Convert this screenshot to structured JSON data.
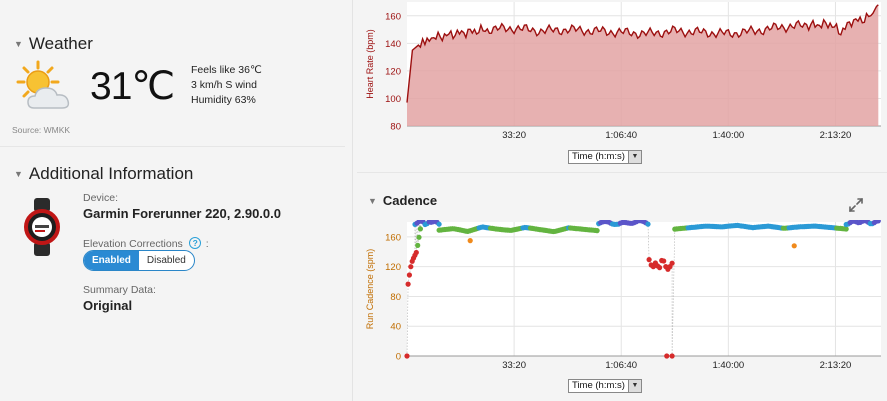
{
  "weather": {
    "section_title": "Weather",
    "icon": "partly-cloudy-icon",
    "temperature": "31℃",
    "feels_like": "Feels like 36℃",
    "wind": "3 km/h S wind",
    "humidity": "Humidity 63%",
    "source": "Source: WMKK"
  },
  "additional": {
    "section_title": "Additional Information",
    "device_label": "Device:",
    "device_value": "Garmin Forerunner 220, 2.90.0.0",
    "elevation_label": "Elevation Corrections",
    "help_icon": "?",
    "elevation_colon": ":",
    "enabled_label": "Enabled",
    "disabled_label": "Disabled",
    "summary_label": "Summary Data:",
    "summary_value": "Original"
  },
  "time_selector": {
    "label": "Time (h:m:s)"
  },
  "cadence": {
    "section_title": "Cadence"
  },
  "colors": {
    "hr_line": "#9c0f0f",
    "hr_fill": "#e3a3a3",
    "accent_blue": "#2b8ad3"
  },
  "chart_data": [
    {
      "type": "area",
      "ylabel": "Heart Rate (bpm)",
      "xlabel": "Time (h:m:s)",
      "ylim": [
        80,
        170
      ],
      "yticks": [
        80,
        100,
        120,
        140,
        160
      ],
      "xlim": [
        0,
        8850
      ],
      "xticks": [
        2000,
        4000,
        6000,
        8000
      ],
      "xtick_labels": [
        "33:20",
        "1:06:40",
        "1:40:00",
        "2:13:20"
      ],
      "grid": true,
      "x": [
        0,
        100,
        250,
        500,
        900,
        1500,
        2000,
        2500,
        3000,
        3500,
        4000,
        4500,
        5000,
        5500,
        6000,
        6500,
        7000,
        7500,
        7900,
        8100,
        8300,
        8500,
        8700,
        8800
      ],
      "values": [
        97,
        135,
        140,
        144,
        147,
        150,
        151,
        149,
        150,
        149,
        148,
        147,
        149,
        148,
        147,
        149,
        152,
        153,
        154,
        148,
        156,
        157,
        161,
        168
      ]
    },
    {
      "type": "scatter",
      "ylabel": "Run Cadence (spm)",
      "xlabel": "Time (h:m:s)",
      "ylim": [
        0,
        180
      ],
      "yticks": [
        0,
        40,
        80,
        120,
        160
      ],
      "xlim": [
        0,
        8850
      ],
      "xticks": [
        2000,
        4000,
        6000,
        8000
      ],
      "xtick_labels": [
        "33:20",
        "1:06:40",
        "1:40:00",
        "2:13:20"
      ],
      "grid": true,
      "segments": [
        {
          "x_start": 0,
          "x_end": 5,
          "values": [
            0
          ]
        },
        {
          "x_start": 20,
          "x_end": 250,
          "values": [
            98,
            110,
            120,
            126,
            130,
            135,
            140,
            150,
            160,
            170
          ]
        },
        {
          "x_start": 150,
          "x_end": 600,
          "values": [
            178,
            181,
            180,
            176,
            182,
            179,
            180,
            178
          ]
        },
        {
          "x_start": 600,
          "x_end": 3550,
          "values": [
            170,
            172,
            168,
            174,
            171,
            169,
            173,
            170,
            167,
            172,
            170,
            168
          ]
        },
        {
          "x_start": 3580,
          "x_end": 4500,
          "values": [
            178,
            180,
            177,
            179,
            181,
            178
          ]
        },
        {
          "x_start": 4520,
          "x_end": 4950,
          "values": [
            128,
            120,
            124,
            118,
            130,
            122,
            115,
            125
          ]
        },
        {
          "x_start": 4950,
          "x_end": 4980,
          "values": [
            0
          ]
        },
        {
          "x_start": 5000,
          "x_end": 8200,
          "values": [
            172,
            174,
            176,
            175,
            177,
            174,
            176,
            173,
            175,
            176,
            174,
            172
          ]
        },
        {
          "x_start": 8200,
          "x_end": 8800,
          "values": [
            178,
            180,
            181,
            179,
            180
          ]
        }
      ],
      "outliers": [
        {
          "x": 1180,
          "y": 155
        },
        {
          "x": 7230,
          "y": 148
        },
        {
          "x": 4850,
          "y": 0
        }
      ]
    }
  ]
}
